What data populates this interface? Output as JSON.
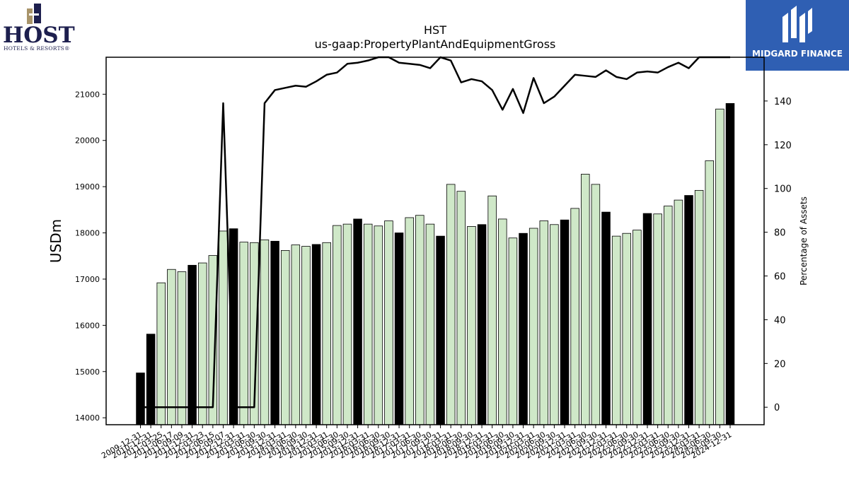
{
  "logos": {
    "host_word": "HOST",
    "host_sub": "HOTELS & RESORTS®",
    "midgard": "MIDGARD FINANCE"
  },
  "chart_data": {
    "type": "bar",
    "title": "HST",
    "subtitle": "us-gaap:PropertyPlantAndEquipmentGross",
    "ylabel": "USDm",
    "y2label": "Percentage of Assets",
    "ylim": [
      13850,
      21800
    ],
    "y2lim": [
      -8,
      160
    ],
    "yticks": [
      14000,
      15000,
      16000,
      17000,
      18000,
      19000,
      20000,
      21000
    ],
    "y2ticks": [
      0,
      20,
      40,
      60,
      80,
      100,
      120,
      140
    ],
    "colors": {
      "annual": "#000000",
      "quarterly": "#cfe8c8",
      "line": "#000000"
    },
    "categories": [
      "2009-12-31",
      "2010-12-31",
      "2011-03-25",
      "2011-06-17",
      "2011-09-09",
      "2011-12-31",
      "2012-03-23",
      "2012-06-15",
      "2012-09-07",
      "2012-12-31",
      "2013-03-31",
      "2013-06-30",
      "2013-09-30",
      "2013-12-31",
      "2014-03-31",
      "2014-06-30",
      "2014-09-30",
      "2014-12-31",
      "2015-03-31",
      "2015-06-30",
      "2015-09-30",
      "2015-12-31",
      "2016-03-31",
      "2016-06-30",
      "2016-09-30",
      "2016-12-31",
      "2017-03-31",
      "2017-06-30",
      "2017-09-30",
      "2017-12-31",
      "2018-03-31",
      "2018-06-30",
      "2018-09-30",
      "2018-12-31",
      "2019-03-31",
      "2019-06-30",
      "2019-09-30",
      "2019-12-31",
      "2020-03-31",
      "2020-06-30",
      "2020-09-30",
      "2020-12-31",
      "2021-03-31",
      "2021-06-30",
      "2021-09-30",
      "2021-12-31",
      "2022-03-31",
      "2022-06-30",
      "2022-09-30",
      "2022-12-31",
      "2023-03-31",
      "2023-06-30",
      "2023-09-30",
      "2023-12-31",
      "2024-03-31",
      "2024-06-30",
      "2024-09-30",
      "2024-12-31"
    ],
    "xtick_labels": [
      "2009-12-31",
      "2010-12-31",
      "2011-03-25",
      "2011-06-17",
      "2011-09-09",
      "2011-12-31",
      "2012-03-23",
      "2012-06-15",
      "2012-09-07",
      "2012-12-31",
      "2013-03-31",
      "2013-06-30",
      "2013-09-30",
      "2013-12-31",
      "2014-03-31",
      "2014-06-30",
      "2014-09-30",
      "2014-12-31",
      "2015-03-31",
      "2015-06-30",
      "2015-09-30",
      "2015-12-31",
      "2016-03-31",
      "2016-06-30",
      "2016-09-30",
      "2016-12-31",
      "2017-03-31",
      "2017-06-30",
      "2017-09-30",
      "2017-12-31",
      "2018-03-31",
      "2018-06-30",
      "2018-09-30",
      "2018-12-31",
      "2019-03-31",
      "2019-06-30",
      "2019-09-30",
      "2019-12-31",
      "2020-03-31",
      "2020-06-30",
      "2020-09-30",
      "2020-12-31",
      "2021-03-31",
      "2021-06-30",
      "2021-09-30",
      "2021-12-31",
      "2022-03-31",
      "2022-06-30",
      "2022-09-30",
      "2022-12-31",
      "2023-03-31",
      "2023-06-30",
      "2023-09-30",
      "2023-12-31",
      "2024-03-31",
      "2024-06-30",
      "2024-09-30",
      "2024-12-31"
    ],
    "series": [
      {
        "name": "",
        "kind": "bar",
        "values": [
          14970,
          15810,
          16920,
          17210,
          17160,
          17300,
          17350,
          17510,
          18040,
          18090,
          17800,
          17790,
          17850,
          17820,
          17620,
          17740,
          17710,
          17750,
          17790,
          18160,
          18190,
          18300,
          18190,
          18150,
          18260,
          18000,
          18330,
          18380,
          18190,
          17930,
          19050,
          18900,
          18140,
          18180,
          18800,
          18300,
          17890,
          17990,
          18100,
          18260,
          18180,
          18280,
          18530,
          19270,
          19050,
          18450,
          17930,
          17990,
          18060,
          18420,
          18410,
          18580,
          18710,
          18810,
          18920,
          19560,
          20680,
          20800
        ],
        "annual_flags": [
          1,
          1,
          0,
          0,
          0,
          1,
          0,
          0,
          0,
          1,
          0,
          0,
          0,
          1,
          0,
          0,
          0,
          1,
          0,
          0,
          0,
          1,
          0,
          0,
          0,
          1,
          0,
          0,
          0,
          1,
          0,
          0,
          0,
          1,
          0,
          0,
          0,
          1,
          0,
          0,
          0,
          1,
          0,
          0,
          0,
          1,
          0,
          0,
          0,
          1,
          0,
          0,
          0,
          1,
          0,
          0,
          0,
          1
        ]
      },
      {
        "name": "",
        "kind": "line",
        "axis": "right",
        "values": [
          0,
          0,
          0,
          0,
          0,
          0,
          0,
          0,
          139,
          0,
          0,
          0,
          139,
          145,
          146,
          147,
          146.5,
          149,
          152,
          153,
          157,
          157.5,
          158.5,
          160.5,
          160,
          157.5,
          157,
          156.5,
          155,
          160,
          158.5,
          148.5,
          150,
          149,
          145,
          136,
          145.5,
          134.5,
          150.5,
          139,
          142,
          147,
          152,
          151.5,
          151,
          154,
          151,
          150,
          153,
          153.5,
          153,
          155.5,
          157.5,
          155,
          160.5,
          161,
          163,
          163
        ]
      }
    ]
  }
}
